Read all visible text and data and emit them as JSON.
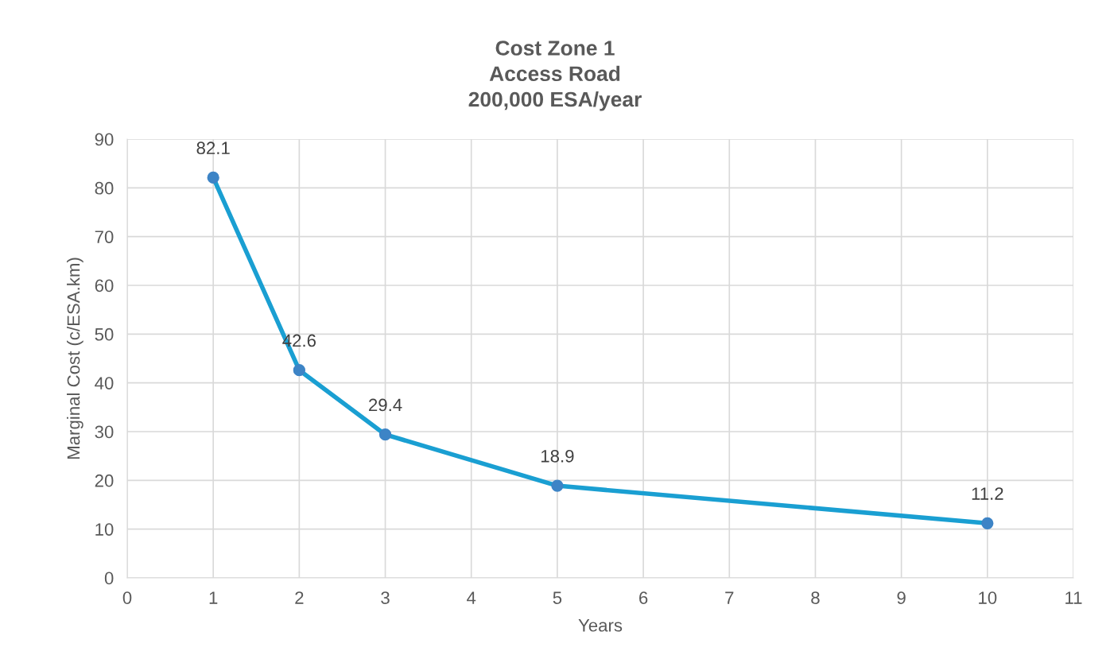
{
  "chart_data": {
    "type": "line",
    "title": "Cost Zone 1\nAccess Road\n200,000 ESA/year",
    "xlabel": "Years",
    "ylabel": "Marginal Cost (c/ESA.km)",
    "x": [
      1,
      2,
      3,
      5,
      10
    ],
    "series": [
      {
        "color": "#1a9fd2",
        "values": [
          82.1,
          42.6,
          29.4,
          18.9,
          11.2
        ]
      }
    ],
    "xlim": [
      0,
      11
    ],
    "xticks": [
      0,
      1,
      2,
      3,
      4,
      5,
      6,
      7,
      8,
      9,
      10,
      11
    ],
    "ylim": [
      0,
      90
    ],
    "yticks": [
      0,
      10,
      20,
      30,
      40,
      50,
      60,
      70,
      80,
      90
    ],
    "grid": true,
    "marker": "circle",
    "line_style": "solid",
    "data_labels": true
  }
}
